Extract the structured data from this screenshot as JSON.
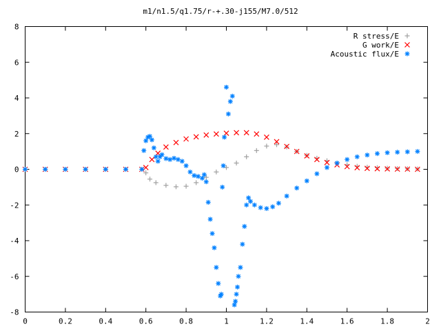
{
  "chart_data": {
    "type": "scatter",
    "title": "m1/n1.5/q1.75/r-+.30-j155/M7.0/512",
    "xlabel": "",
    "ylabel": "",
    "xlim": [
      0,
      2
    ],
    "ylim": [
      -8,
      8
    ],
    "grid": false,
    "legend_position": "top-right",
    "x_ticks": [
      "0",
      "0.2",
      "0.4",
      "0.6",
      "0.8",
      "1",
      "1.2",
      "1.4",
      "1.6",
      "1.8",
      "2"
    ],
    "y_ticks": [
      "8",
      "6",
      "4",
      "2",
      "0",
      "-2",
      "-4",
      "-6",
      "-8"
    ],
    "series": [
      {
        "name": "R stress/E",
        "marker": "+",
        "color": "#a0a0a0",
        "x": [
          0.0,
          0.1,
          0.2,
          0.3,
          0.4,
          0.5,
          0.58,
          0.6,
          0.62,
          0.65,
          0.7,
          0.75,
          0.8,
          0.85,
          0.9,
          0.95,
          1.0,
          1.05,
          1.1,
          1.15,
          1.2,
          1.25,
          1.3,
          1.35,
          1.4,
          1.45,
          1.5,
          1.55,
          1.6,
          1.65,
          1.7,
          1.75,
          1.8,
          1.85,
          1.9,
          1.95
        ],
        "y": [
          0.0,
          0.0,
          0.0,
          0.0,
          0.0,
          0.0,
          0.0,
          -0.2,
          -0.55,
          -0.75,
          -0.9,
          -0.98,
          -0.95,
          -0.75,
          -0.45,
          -0.15,
          0.1,
          0.35,
          0.7,
          1.05,
          1.3,
          1.38,
          1.25,
          1.0,
          0.78,
          0.62,
          0.48,
          0.35,
          0.25,
          0.17,
          0.12,
          0.09,
          0.06,
          0.04,
          0.03,
          0.02
        ]
      },
      {
        "name": "G work/E",
        "marker": "x",
        "color": "#ff0000",
        "x": [
          0.0,
          0.1,
          0.2,
          0.3,
          0.4,
          0.5,
          0.58,
          0.6,
          0.63,
          0.66,
          0.7,
          0.75,
          0.8,
          0.85,
          0.9,
          0.95,
          1.0,
          1.05,
          1.1,
          1.15,
          1.2,
          1.25,
          1.3,
          1.35,
          1.4,
          1.45,
          1.5,
          1.55,
          1.6,
          1.65,
          1.7,
          1.75,
          1.8,
          1.85,
          1.9,
          1.95
        ],
        "y": [
          0.0,
          0.0,
          0.0,
          0.0,
          0.0,
          0.0,
          0.0,
          0.1,
          0.55,
          0.9,
          1.25,
          1.5,
          1.7,
          1.82,
          1.92,
          1.98,
          2.02,
          2.05,
          2.05,
          1.98,
          1.8,
          1.55,
          1.28,
          1.0,
          0.75,
          0.55,
          0.38,
          0.25,
          0.15,
          0.09,
          0.05,
          0.03,
          0.02,
          0.01,
          0.01,
          0.0
        ]
      },
      {
        "name": "Acoustic flux/E",
        "marker": "*",
        "color": "#0080ff",
        "x": [
          0.0,
          0.1,
          0.2,
          0.3,
          0.4,
          0.5,
          0.58,
          0.59,
          0.6,
          0.61,
          0.62,
          0.63,
          0.64,
          0.65,
          0.66,
          0.67,
          0.68,
          0.7,
          0.72,
          0.74,
          0.76,
          0.78,
          0.8,
          0.82,
          0.84,
          0.86,
          0.88,
          0.89,
          0.9,
          0.91,
          0.92,
          0.93,
          0.94,
          0.95,
          0.96,
          0.97,
          0.975,
          0.98,
          0.985,
          0.99,
          1.0,
          1.01,
          1.02,
          1.03,
          1.04,
          1.045,
          1.05,
          1.055,
          1.06,
          1.07,
          1.08,
          1.09,
          1.1,
          1.11,
          1.12,
          1.14,
          1.17,
          1.2,
          1.23,
          1.26,
          1.3,
          1.35,
          1.4,
          1.45,
          1.5,
          1.55,
          1.6,
          1.65,
          1.7,
          1.75,
          1.8,
          1.85,
          1.9,
          1.95
        ],
        "y": [
          0.0,
          0.0,
          0.0,
          0.0,
          0.0,
          0.0,
          0.0,
          1.05,
          1.6,
          1.8,
          1.85,
          1.65,
          1.2,
          0.7,
          0.45,
          0.7,
          0.82,
          0.6,
          0.55,
          0.62,
          0.55,
          0.45,
          0.2,
          -0.15,
          -0.35,
          -0.4,
          -0.5,
          -0.3,
          -0.7,
          -1.85,
          -2.8,
          -3.6,
          -4.4,
          -5.5,
          -6.4,
          -7.1,
          -7.0,
          -1.0,
          0.2,
          1.8,
          4.6,
          3.1,
          3.8,
          4.1,
          -7.6,
          -7.4,
          -7.0,
          -6.6,
          -6.0,
          -5.5,
          -4.2,
          -3.2,
          -2.0,
          -1.6,
          -1.8,
          -2.0,
          -2.15,
          -2.2,
          -2.1,
          -1.9,
          -1.5,
          -1.05,
          -0.65,
          -0.25,
          0.1,
          0.35,
          0.55,
          0.7,
          0.8,
          0.88,
          0.93,
          0.96,
          0.98,
          1.0
        ]
      }
    ]
  }
}
